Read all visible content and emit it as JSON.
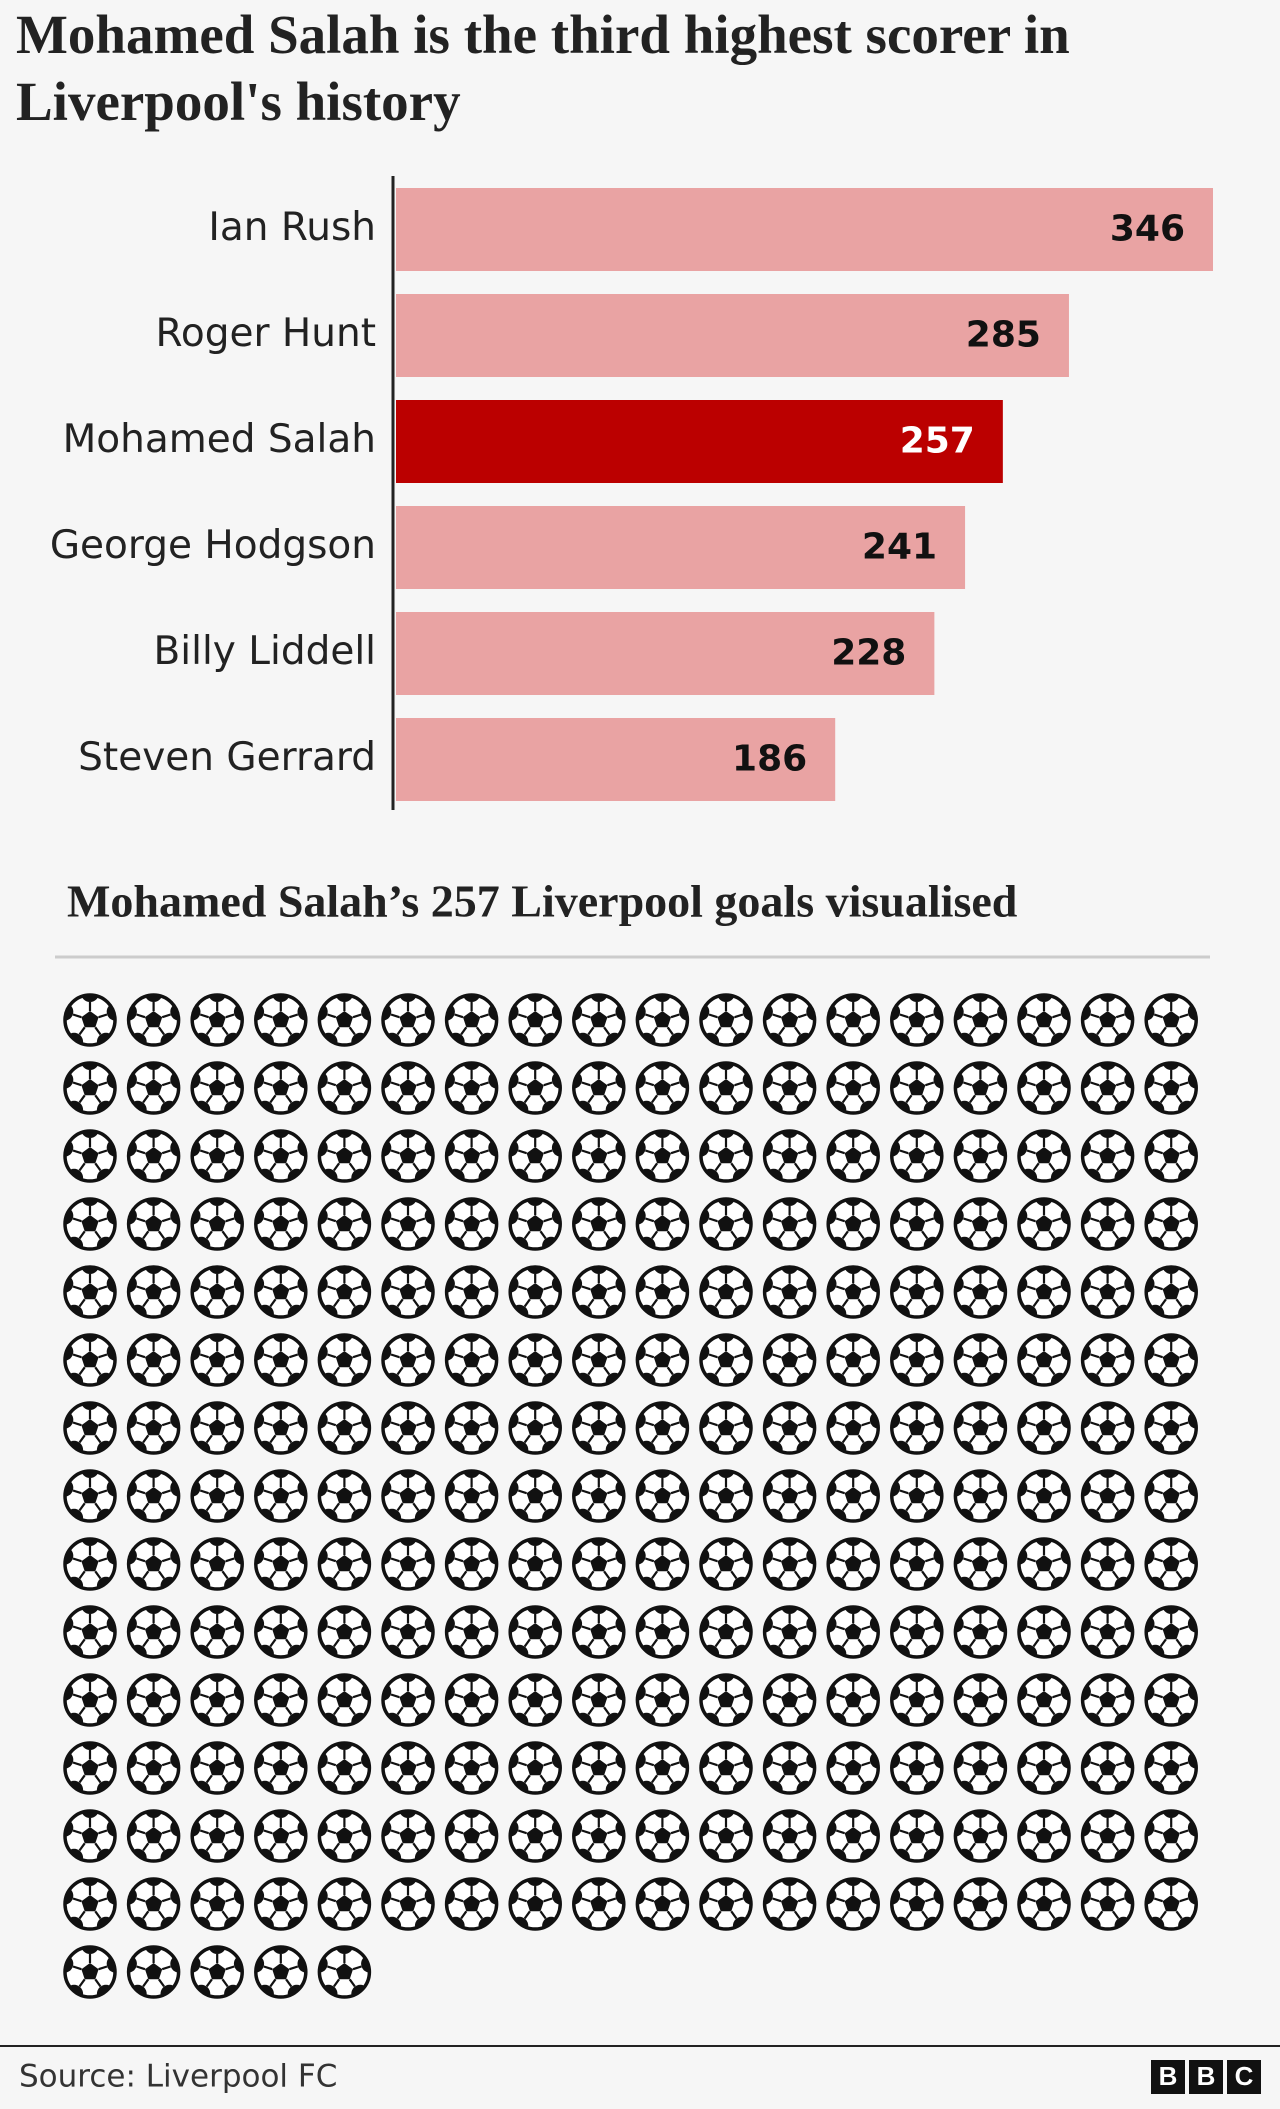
{
  "chart_data": [
    {
      "type": "bar",
      "orientation": "horizontal",
      "title": "Mohamed Salah is the third highest scorer in Liverpool's history",
      "categories": [
        "Ian Rush",
        "Roger Hunt",
        "Mohamed Salah",
        "George Hodgson",
        "Billy Liddell",
        "Steven Gerrard"
      ],
      "values": [
        346,
        285,
        257,
        241,
        228,
        186
      ],
      "colors": [
        "#e9a3a3",
        "#e9a3a3",
        "#bb0000",
        "#e9a3a3",
        "#e9a3a3",
        "#e9a3a3"
      ]
    },
    {
      "type": "pictogram",
      "title": "Mohamed Salah’s 257 Liverpool goals visualised",
      "value": 257,
      "icon": "football"
    }
  ],
  "footer": {
    "source": "Source: Liverpool FC",
    "logo": [
      "B",
      "B",
      "C"
    ]
  }
}
